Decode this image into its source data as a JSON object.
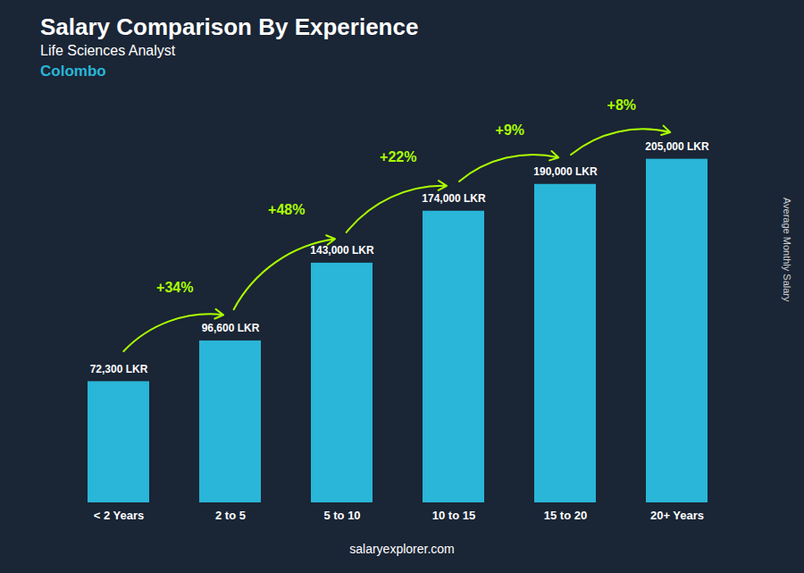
{
  "chart_data": {
    "type": "bar",
    "title": "Salary Comparison By Experience",
    "subtitle": "Life Sciences Analyst",
    "ylabel": "Average Monthly Salary",
    "caption": "salaryexplorer.com",
    "categories": [
      "< 2 Years",
      "2 to 5",
      "5 to 10",
      "10 to 15",
      "15 to 20",
      "20+ Years"
    ],
    "values": [
      72300,
      96600,
      143000,
      174000,
      190000,
      205000
    ],
    "value_labels": [
      "72,300 LKR",
      "96,600 LKR",
      "143,000 LKR",
      "174,000 LKR",
      "190,000 LKR",
      "205,000 LKR"
    ],
    "data_labels": true,
    "color": "#29b6d8",
    "ylim": [
      0,
      240000
    ],
    "tick_labels": "x",
    "grid": false,
    "annotations": [
      {
        "text": "Colombo",
        "color": "#29b6d8"
      },
      {
        "text": "+34%",
        "color": "#aaff00",
        "from": "< 2 Years",
        "to": "2 to 5"
      },
      {
        "text": "+48%",
        "color": "#aaff00",
        "from": "2 to 5",
        "to": "5 to 10"
      },
      {
        "text": "+22%",
        "color": "#aaff00",
        "from": "5 to 10",
        "to": "10 to 15"
      },
      {
        "text": "+9%",
        "color": "#aaff00",
        "from": "10 to 15",
        "to": "15 to 20"
      },
      {
        "text": "+8%",
        "color": "#aaff00",
        "from": "15 to 20",
        "to": "20+ Years"
      }
    ]
  }
}
